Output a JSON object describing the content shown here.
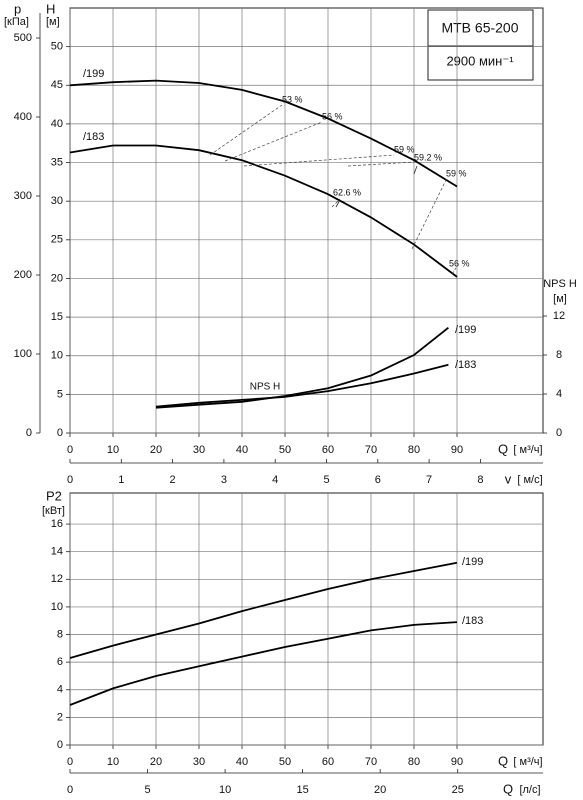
{
  "title_box": {
    "model": "MTB 65-200",
    "speed": "2900 мин⁻¹"
  },
  "chart_data": [
    {
      "type": "line",
      "x_label": "Q",
      "x_unit": "[ м³/ч]",
      "xlim": [
        0,
        110
      ],
      "xticks": [
        0,
        10,
        20,
        30,
        40,
        50,
        60,
        70,
        80,
        90
      ],
      "y_label": "H",
      "y_unit": "[м]",
      "ylim": [
        0,
        55
      ],
      "yticks": [
        0,
        5,
        10,
        15,
        20,
        25,
        30,
        35,
        40,
        45,
        50
      ],
      "grid": true,
      "p_axis": {
        "label": "p",
        "unit": "[кПа]",
        "lim": [
          0,
          538
        ],
        "ticks": [
          0,
          100,
          200,
          300,
          400,
          500
        ]
      },
      "y2_label": "NPS H",
      "y2_unit": "[м]",
      "y2lim": [
        0,
        43.6
      ],
      "y2ticks": [
        0,
        4,
        8,
        12
      ],
      "v_axis": {
        "label": "v",
        "unit": "[ м/с]",
        "lim": [
          0,
          9.22
        ],
        "ticks": [
          0,
          1,
          2,
          3,
          4,
          5,
          6,
          7,
          8
        ]
      },
      "series": [
        {
          "name": "/199",
          "color": "#000000",
          "x": [
            0,
            10,
            20,
            30,
            40,
            50,
            60,
            70,
            80,
            90
          ],
          "values": [
            45,
            45.4,
            45.6,
            45.3,
            44.4,
            42.9,
            40.7,
            38.1,
            35.3,
            31.9
          ]
        },
        {
          "name": "/183",
          "color": "#000000",
          "x": [
            0,
            10,
            20,
            30,
            40,
            50,
            60,
            70,
            80,
            90
          ],
          "values": [
            36.3,
            37.2,
            37.2,
            36.6,
            35.3,
            33.3,
            30.9,
            27.9,
            24.4,
            20.2
          ]
        },
        {
          "name": "/199",
          "color": "#000000",
          "axis": "y2",
          "x": [
            20,
            30,
            40,
            50,
            60,
            70,
            80,
            88
          ],
          "values": [
            2.6,
            2.9,
            3.2,
            3.8,
            4.6,
            5.9,
            8.0,
            10.8
          ]
        },
        {
          "name": "/183",
          "color": "#000000",
          "axis": "y2",
          "x": [
            20,
            30,
            40,
            50,
            60,
            70,
            80,
            88
          ],
          "values": [
            2.7,
            3.1,
            3.4,
            3.7,
            4.3,
            5.1,
            6.1,
            7.0
          ]
        }
      ],
      "npsh_curve_label": "NPS H",
      "efficiency_labels": [
        "53 %",
        "56 %",
        "59 %",
        "59.2 %",
        "62.6 %",
        "59 %",
        "56 %"
      ]
    },
    {
      "type": "line",
      "x_label": "Q",
      "x_unit": "[ м³/ч]",
      "xlim": [
        0,
        110
      ],
      "xticks": [
        0,
        10,
        20,
        30,
        40,
        50,
        60,
        70,
        80,
        90
      ],
      "y_label": "P2",
      "y_unit": "[кВт]",
      "ylim": [
        0,
        18.25
      ],
      "yticks": [
        0,
        2,
        4,
        6,
        8,
        10,
        12,
        14,
        16
      ],
      "grid": true,
      "ls_axis": {
        "label": "Q",
        "unit": "[л/с]",
        "lim": [
          0,
          30.5
        ],
        "ticks": [
          0,
          5,
          10,
          15,
          20,
          25
        ]
      },
      "series": [
        {
          "name": "/199",
          "color": "#000000",
          "x": [
            0,
            10,
            20,
            30,
            40,
            50,
            60,
            70,
            80,
            90
          ],
          "values": [
            6.3,
            7.2,
            8.0,
            8.8,
            9.7,
            10.5,
            11.3,
            12.0,
            12.6,
            13.2
          ]
        },
        {
          "name": "/183",
          "color": "#000000",
          "x": [
            0,
            10,
            20,
            30,
            40,
            50,
            60,
            70,
            80,
            90
          ],
          "values": [
            2.9,
            4.1,
            5.0,
            5.7,
            6.4,
            7.1,
            7.7,
            8.3,
            8.7,
            8.9
          ]
        }
      ]
    }
  ]
}
